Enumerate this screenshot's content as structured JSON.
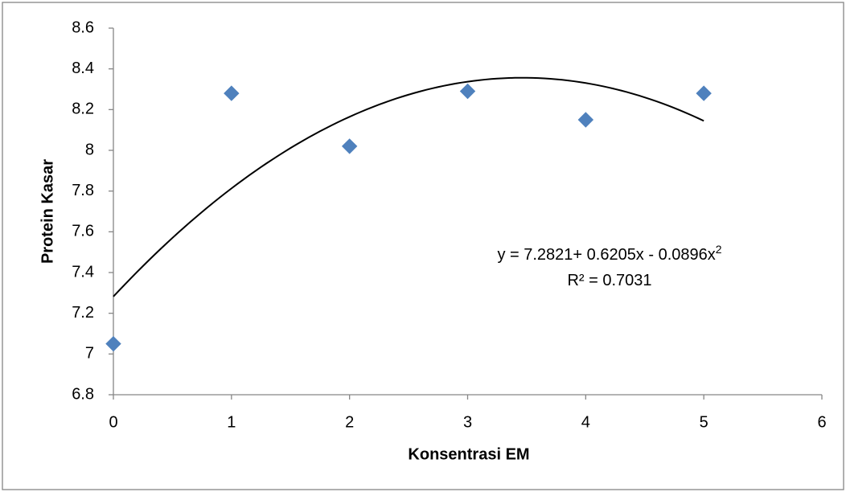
{
  "chart_data": {
    "type": "scatter",
    "x_label": "Konsentrasi EM",
    "y_label": "Protein Kasar",
    "x": [
      0,
      1,
      2,
      3,
      4,
      5
    ],
    "series": [
      {
        "color": "#4f81bd",
        "values": [
          7.05,
          8.28,
          8.02,
          8.29,
          8.15,
          8.28
        ]
      }
    ],
    "xlim": [
      0,
      6
    ],
    "xticks": [
      0,
      1,
      2,
      3,
      4,
      5,
      6
    ],
    "ylim": [
      6.8,
      8.6
    ],
    "yticks": [
      6.8,
      7,
      7.2,
      7.4,
      7.6,
      7.8,
      8,
      8.2,
      8.4,
      8.6
    ],
    "grid": false,
    "trendline": {
      "type": "polynomial",
      "coefficients": [
        7.2821,
        0.6205,
        -0.0896
      ],
      "color": "#000000",
      "equation": "y = 7.2821+ 0.6205x  - 0.0896x",
      "equation_exponent": "2",
      "r_squared": "R² = 0.7031"
    }
  }
}
